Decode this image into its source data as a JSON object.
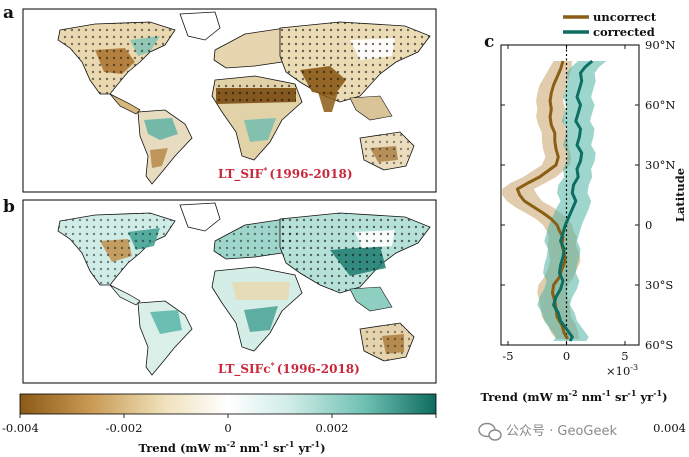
{
  "panels": {
    "a": {
      "letter": "a",
      "title_main": "LT_SIF",
      "title_sup": "*",
      "title_period": "(1996-2018)"
    },
    "b": {
      "letter": "b",
      "title_main": "LT_SIFc",
      "title_sup": "*",
      "title_period": "(1996-2018)"
    },
    "c": {
      "letter": "c"
    }
  },
  "colorbar": {
    "ticks": [
      "-0.004",
      "-0.002",
      "0",
      "0.002",
      "0.004"
    ],
    "label_parts": [
      "Trend (mW m",
      "-2",
      " nm",
      "-1",
      " sr",
      "-1",
      " yr",
      "-1",
      ")"
    ],
    "colors": [
      "#8c5a17",
      "#c99a52",
      "#f0e2bd",
      "#ffffff",
      "#cfece6",
      "#6ec0b2",
      "#0e6b60"
    ]
  },
  "chart_data": {
    "type": "line",
    "orientation": "horizontal-profile",
    "x_axis": {
      "ticks": [
        -5,
        0,
        5
      ],
      "exponent": "×10",
      "exponent_power": "-3",
      "label_parts": [
        "Trend (mW m",
        "-2",
        " nm",
        "-1",
        " sr",
        "-1",
        " yr",
        "-1",
        ")"
      ],
      "range": [
        -5.6,
        6.2
      ]
    },
    "y_axis": {
      "label": "Latitude",
      "tick_values": [
        90,
        60,
        30,
        0,
        -30,
        -60
      ],
      "tick_labels": [
        "90°N",
        "60°N",
        "30°N",
        "0",
        "30°S",
        "60°S"
      ],
      "range": [
        -60,
        90
      ]
    },
    "zero_line": "dotted",
    "legend_position": "top",
    "series": [
      {
        "name": "uncorrect",
        "color": "#8a5e14",
        "band_color": "#c9a46a",
        "lat": [
          82,
          78,
          74,
          70,
          66,
          62,
          58,
          54,
          50,
          46,
          42,
          38,
          34,
          30,
          27,
          24,
          21,
          18,
          15,
          12,
          9,
          6,
          3,
          0,
          -3,
          -6,
          -10,
          -14,
          -18,
          -22,
          -26,
          -30,
          -34,
          -38,
          -42,
          -46,
          -50,
          -54,
          -57
        ],
        "value": [
          -0.3,
          -0.5,
          -0.8,
          -1.1,
          -1.3,
          -1.4,
          -1.3,
          -1.4,
          -1.3,
          -1.0,
          -1.0,
          -0.9,
          -0.7,
          -0.9,
          -1.6,
          -2.3,
          -3.3,
          -4.2,
          -4.0,
          -3.6,
          -2.8,
          -2.0,
          -1.3,
          -0.8,
          -0.6,
          -0.3,
          -0.4,
          -0.2,
          -0.1,
          -0.4,
          -0.6,
          -1.1,
          -1.2,
          -1.0,
          -0.9,
          -0.8,
          -0.4,
          -0.2,
          0.1
        ],
        "lower": [
          -1.1,
          -1.5,
          -1.9,
          -2.3,
          -2.5,
          -2.6,
          -2.5,
          -2.6,
          -2.4,
          -2.1,
          -2.1,
          -2.0,
          -1.8,
          -2.1,
          -2.9,
          -3.7,
          -4.8,
          -5.5,
          -5.5,
          -5.1,
          -4.4,
          -3.5,
          -2.6,
          -2.0,
          -1.7,
          -1.5,
          -1.6,
          -1.5,
          -1.4,
          -1.6,
          -1.9,
          -2.4,
          -2.5,
          -2.3,
          -2.2,
          -2.1,
          -1.6,
          -1.3,
          -0.9
        ],
        "upper": [
          0.5,
          0.4,
          0.2,
          0.0,
          -0.2,
          -0.3,
          -0.1,
          -0.2,
          -0.2,
          0.1,
          0.1,
          0.2,
          0.4,
          0.3,
          -0.3,
          -0.9,
          -1.8,
          -2.8,
          -2.5,
          -2.1,
          -1.2,
          -0.5,
          0.1,
          0.5,
          0.6,
          0.9,
          0.8,
          1.1,
          1.2,
          0.9,
          0.6,
          0.1,
          0.0,
          0.2,
          0.3,
          0.4,
          0.8,
          1.0,
          1.1
        ]
      },
      {
        "name": "corrected",
        "color": "#0d6e63",
        "band_color": "#4fb3a4",
        "lat": [
          82,
          79,
          76,
          72,
          68,
          64,
          60,
          56,
          52,
          48,
          44,
          40,
          36,
          32,
          28,
          24,
          20,
          16,
          12,
          8,
          4,
          0,
          -4,
          -8,
          -12,
          -16,
          -20,
          -24,
          -28,
          -32,
          -36,
          -40,
          -44,
          -48,
          -52,
          -56,
          -58
        ],
        "value": [
          2.2,
          1.6,
          1.2,
          1.3,
          1.1,
          0.9,
          1.2,
          1.0,
          0.8,
          1.2,
          1.1,
          0.9,
          1.3,
          1.2,
          0.9,
          1.0,
          0.6,
          0.5,
          0.8,
          0.5,
          0.2,
          -0.1,
          -0.3,
          -0.5,
          -0.2,
          -0.3,
          -0.5,
          -0.6,
          -0.3,
          -0.5,
          -0.9,
          -1.1,
          -0.7,
          -0.5,
          0.0,
          0.5,
          0.3
        ],
        "lower": [
          1.0,
          0.4,
          0.0,
          0.1,
          -0.1,
          -0.3,
          0.0,
          -0.2,
          -0.4,
          0.0,
          -0.1,
          -0.3,
          0.1,
          0.0,
          -0.3,
          -0.2,
          -0.7,
          -0.8,
          -0.5,
          -0.9,
          -1.2,
          -1.5,
          -1.7,
          -1.9,
          -1.6,
          -1.7,
          -1.9,
          -2.0,
          -1.7,
          -1.9,
          -2.3,
          -2.5,
          -2.1,
          -1.9,
          -1.4,
          -0.9,
          -1.1
        ],
        "upper": [
          3.4,
          2.8,
          2.4,
          2.5,
          2.3,
          2.1,
          2.4,
          2.2,
          2.0,
          2.4,
          2.3,
          2.1,
          2.5,
          2.4,
          2.1,
          2.2,
          1.9,
          1.8,
          2.1,
          1.9,
          1.6,
          1.3,
          1.1,
          0.9,
          1.2,
          1.1,
          0.9,
          0.8,
          1.1,
          0.9,
          0.5,
          0.3,
          0.7,
          0.9,
          1.4,
          1.9,
          1.7
        ]
      }
    ]
  },
  "watermark": {
    "icon": "wechat-icon",
    "text": "公众号 · GeoGeek"
  }
}
